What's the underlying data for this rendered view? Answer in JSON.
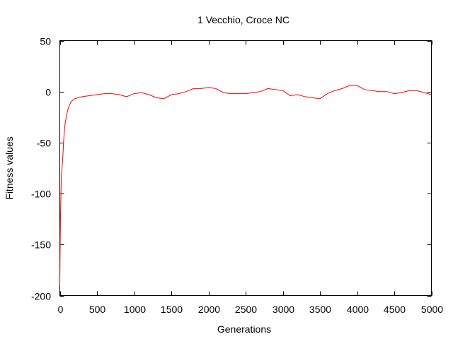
{
  "chart_data": {
    "type": "line",
    "title": "1 Vecchio, Croce NC",
    "xlabel": "Generations",
    "ylabel": "Fitness values",
    "xlim": [
      0,
      5000
    ],
    "ylim": [
      -200,
      50
    ],
    "xticks": [
      0,
      500,
      1000,
      1500,
      2000,
      2500,
      3000,
      3500,
      4000,
      4500,
      5000
    ],
    "yticks": [
      -200,
      -150,
      -100,
      -50,
      0,
      50
    ],
    "xtick_labels": [
      "0",
      "500",
      "1000",
      "1500",
      "2000",
      "2500",
      "3000",
      "3500",
      "4000",
      "4500",
      "5000"
    ],
    "ytick_labels": [
      "-200",
      "-150",
      "-100",
      "-50",
      "0",
      "50"
    ],
    "grid": false,
    "series": [
      {
        "color": "#ff0000",
        "x": [
          0,
          5,
          10,
          20,
          30,
          40,
          50,
          60,
          70,
          80,
          100,
          120,
          150,
          200,
          300,
          400,
          500,
          600,
          700,
          800,
          900,
          1000,
          1100,
          1200,
          1300,
          1400,
          1500,
          1600,
          1700,
          1800,
          1900,
          2000,
          2100,
          2200,
          2300,
          2400,
          2500,
          2600,
          2700,
          2800,
          2900,
          3000,
          3100,
          3200,
          3300,
          3400,
          3500,
          3600,
          3700,
          3800,
          3900,
          4000,
          4100,
          4200,
          4300,
          4400,
          4500,
          4600,
          4700,
          4800,
          4900,
          5000
        ],
        "y": [
          -190,
          -150,
          -120,
          -85,
          -75,
          -65,
          -50,
          -40,
          -32,
          -28,
          -20,
          -15,
          -10,
          -7,
          -5,
          -4,
          -3,
          -2,
          -2,
          -3,
          -5,
          -2,
          -1,
          -3,
          -6,
          -7,
          -3,
          -2,
          0,
          3,
          3,
          4,
          3,
          -1,
          -2,
          -2,
          -2,
          -1,
          0,
          3,
          2,
          1,
          -4,
          -3,
          -5,
          -6,
          -7,
          -2,
          1,
          3,
          6,
          6,
          2,
          1,
          0,
          0,
          -2,
          -1,
          1,
          1,
          -1,
          -3
        ]
      }
    ]
  }
}
